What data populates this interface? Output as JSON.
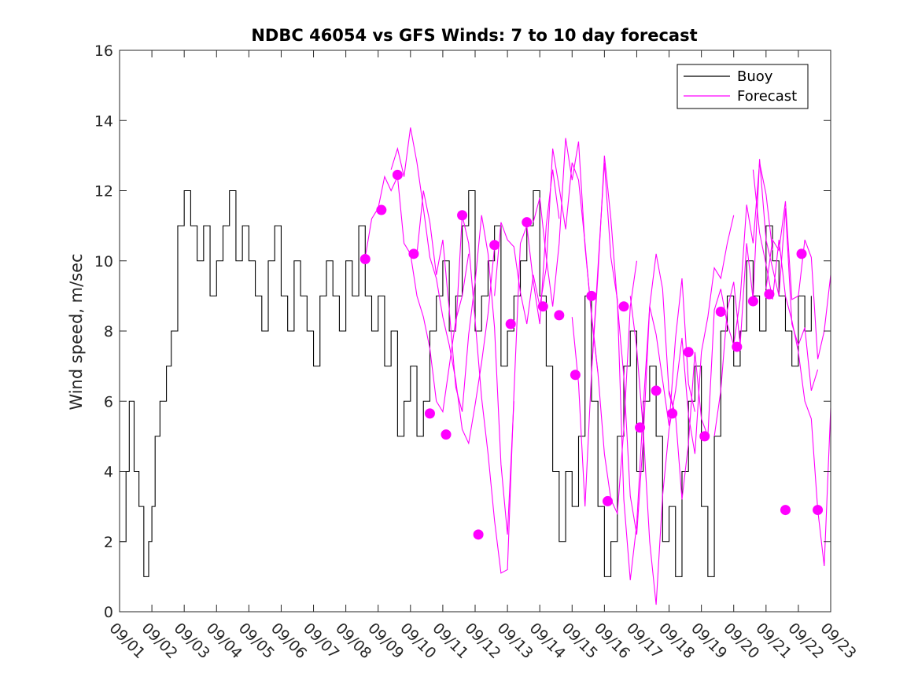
{
  "chart_data": {
    "type": "line",
    "title": "NDBC 46054 vs GFS Winds: 7 to 10 day forecast",
    "xlabel": "",
    "ylabel": "Wind speed, m/sec",
    "xlim": [
      0,
      22
    ],
    "ylim": [
      0,
      16
    ],
    "x_ticks": [
      {
        "x": 0,
        "label": "09/01"
      },
      {
        "x": 1,
        "label": "09/02"
      },
      {
        "x": 2,
        "label": "09/03"
      },
      {
        "x": 3,
        "label": "09/04"
      },
      {
        "x": 4,
        "label": "09/05"
      },
      {
        "x": 5,
        "label": "09/06"
      },
      {
        "x": 6,
        "label": "09/07"
      },
      {
        "x": 7,
        "label": "09/08"
      },
      {
        "x": 8,
        "label": "09/09"
      },
      {
        "x": 9,
        "label": "09/10"
      },
      {
        "x": 10,
        "label": "09/11"
      },
      {
        "x": 11,
        "label": "09/12"
      },
      {
        "x": 12,
        "label": "09/13"
      },
      {
        "x": 13,
        "label": "09/14"
      },
      {
        "x": 14,
        "label": "09/15"
      },
      {
        "x": 15,
        "label": "09/16"
      },
      {
        "x": 16,
        "label": "09/17"
      },
      {
        "x": 17,
        "label": "09/18"
      },
      {
        "x": 18,
        "label": "09/19"
      },
      {
        "x": 19,
        "label": "09/20"
      },
      {
        "x": 20,
        "label": "09/21"
      },
      {
        "x": 21,
        "label": "09/22"
      },
      {
        "x": 22,
        "label": "09/23"
      }
    ],
    "y_ticks": [
      0,
      2,
      4,
      6,
      8,
      10,
      12,
      14,
      16
    ],
    "legend": {
      "position": "top-right",
      "entries": [
        {
          "name": "Buoy",
          "color": "#000000"
        },
        {
          "name": "Forecast",
          "color": "#ff00ff"
        }
      ]
    },
    "series": [
      {
        "name": "Buoy",
        "color": "#000000",
        "x": [
          0,
          0.2,
          0.3,
          0.45,
          0.6,
          0.75,
          0.9,
          1.0,
          1.1,
          1.25,
          1.45,
          1.6,
          1.8,
          2.0,
          2.2,
          2.4,
          2.6,
          2.8,
          3.0,
          3.2,
          3.4,
          3.6,
          3.8,
          4.0,
          4.2,
          4.4,
          4.6,
          4.8,
          5.0,
          5.2,
          5.4,
          5.6,
          5.8,
          6.0,
          6.2,
          6.4,
          6.6,
          6.8,
          7.0,
          7.2,
          7.4,
          7.6,
          7.8,
          8.0,
          8.2,
          8.4,
          8.6,
          8.8,
          9.0,
          9.2,
          9.4,
          9.6,
          9.8,
          10.0,
          10.2,
          10.4,
          10.6,
          10.8,
          11.0,
          11.2,
          11.4,
          11.6,
          11.8,
          12.0,
          12.2,
          12.4,
          12.6,
          12.8,
          13.0,
          13.2,
          13.4,
          13.6,
          13.8,
          14.0,
          14.2,
          14.4,
          14.6,
          14.8,
          15.0,
          15.2,
          15.4,
          15.6,
          15.8,
          16.0,
          16.2,
          16.4,
          16.6,
          16.8,
          17.0,
          17.2,
          17.4,
          17.6,
          17.8,
          18.0,
          18.2,
          18.4,
          18.6,
          18.8,
          19.0,
          19.2,
          19.4,
          19.6,
          19.8,
          20.0,
          20.2,
          20.4,
          20.6,
          20.8,
          21.0,
          21.2,
          21.4
        ],
        "y": [
          2,
          4,
          6,
          4,
          3,
          1,
          2,
          3,
          5,
          6,
          7,
          8,
          11,
          12,
          11,
          10,
          11,
          9,
          10,
          11,
          12,
          10,
          11,
          10,
          9,
          8,
          10,
          11,
          9,
          8,
          10,
          9,
          8,
          7,
          9,
          10,
          9,
          8,
          10,
          9,
          11,
          9,
          8,
          9,
          7,
          8,
          5,
          6,
          7,
          5,
          6,
          8,
          9,
          10,
          8,
          9,
          11,
          12,
          8,
          9,
          10,
          11,
          7,
          8,
          9,
          10,
          11,
          12,
          9,
          7,
          4,
          2,
          4,
          3,
          5,
          9,
          6,
          3,
          1,
          2,
          5,
          7,
          8,
          4,
          6,
          7,
          5,
          2,
          3,
          1,
          4,
          6,
          7,
          3,
          1,
          5,
          8,
          9,
          7,
          8,
          10,
          9,
          8,
          11,
          10,
          9,
          8,
          7,
          9,
          8,
          9
        ]
      },
      {
        "name": "Forecast",
        "color": "#ff00ff",
        "x": [
          7.6,
          7.8,
          8.0,
          8.2,
          8.4,
          8.6,
          8.8,
          9.0,
          9.2,
          9.4,
          9.6,
          9.8,
          10.0,
          10.2,
          10.4,
          10.6,
          10.8
        ],
        "y": [
          10.1,
          11.2,
          11.5,
          12.4,
          12.0,
          12.4,
          10.5,
          10.2,
          9.0,
          8.4,
          7.5,
          6.0,
          5.7,
          7.0,
          8.3,
          9.0,
          10.2
        ]
      },
      {
        "name": "Forecast",
        "color": "#ff00ff",
        "x": [
          8.4,
          8.6,
          8.8,
          9.0,
          9.2,
          9.4,
          9.6,
          9.8,
          10.0,
          10.2,
          10.4,
          10.6,
          10.8,
          11.0,
          11.2,
          11.4,
          11.6
        ],
        "y": [
          12.6,
          13.2,
          12.4,
          13.8,
          12.8,
          11.5,
          10.1,
          9.5,
          8.4,
          7.6,
          6.6,
          5.2,
          4.8,
          5.9,
          7.1,
          8.5,
          10.4
        ]
      },
      {
        "name": "Forecast",
        "color": "#ff00ff",
        "x": [
          9.2,
          9.4,
          9.6,
          9.8,
          10.0,
          10.2,
          10.4,
          10.6,
          10.8,
          11.0,
          11.2,
          11.4,
          11.6,
          11.8,
          12.0,
          12.2
        ],
        "y": [
          10.2,
          12.0,
          11.1,
          9.6,
          10.6,
          8.6,
          6.4,
          5.7,
          7.9,
          9.4,
          11.3,
          10.2,
          8.1,
          4.2,
          2.2,
          6.0
        ]
      },
      {
        "name": "Forecast",
        "color": "#ff00ff",
        "x": [
          10.4,
          10.6,
          10.8,
          11.0,
          11.2,
          11.4,
          11.6,
          11.8,
          12.0,
          12.2,
          12.4,
          12.6,
          12.8,
          13.0,
          13.2,
          13.4,
          13.6
        ],
        "y": [
          8.0,
          11.3,
          10.5,
          8.3,
          6.1,
          4.5,
          2.6,
          1.1,
          1.2,
          6.2,
          10.5,
          11.0,
          9.4,
          8.2,
          11.0,
          12.6,
          11.2
        ]
      },
      {
        "name": "Forecast",
        "color": "#ff00ff",
        "x": [
          11.6,
          11.8,
          12.0,
          12.2,
          12.4,
          12.6,
          12.8,
          13.0,
          13.2,
          13.4,
          13.6,
          13.8,
          14.0,
          14.2,
          14.4,
          14.6,
          14.8
        ],
        "y": [
          9.0,
          11.1,
          10.6,
          10.4,
          9.1,
          8.2,
          9.6,
          8.7,
          9.8,
          13.2,
          12.1,
          10.9,
          12.8,
          12.3,
          10.5,
          8.4,
          6.8
        ]
      },
      {
        "name": "Forecast",
        "color": "#ff00ff",
        "x": [
          12.8,
          13.0,
          13.2,
          13.4,
          13.6,
          13.8,
          14.0,
          14.2,
          14.4,
          14.6,
          14.8,
          15.0,
          15.2,
          15.4,
          15.6,
          15.8,
          16.0
        ],
        "y": [
          11.1,
          11.8,
          10.1,
          8.7,
          10.5,
          13.5,
          12.3,
          13.4,
          10.4,
          8.5,
          6.8,
          4.5,
          3.2,
          2.8,
          5.2,
          8.7,
          10.0
        ]
      },
      {
        "name": "Forecast",
        "color": "#ff00ff",
        "x": [
          14.0,
          14.2,
          14.4,
          14.6,
          14.8,
          15.0,
          15.2,
          15.4,
          15.6,
          15.8,
          16.0,
          16.2,
          16.4,
          16.6,
          16.8,
          17.0,
          17.2
        ],
        "y": [
          8.4,
          6.5,
          3.0,
          6.8,
          9.6,
          13.0,
          11.2,
          8.8,
          6.7,
          3.3,
          2.2,
          4.9,
          8.7,
          10.2,
          9.2,
          6.2,
          5.6
        ]
      },
      {
        "name": "Forecast",
        "color": "#ff00ff",
        "x": [
          14.6,
          14.8,
          15.0,
          15.2,
          15.4,
          15.6,
          15.8,
          16.0,
          16.2,
          16.4,
          16.6,
          16.8,
          17.0,
          17.2,
          17.4,
          17.6,
          17.8
        ],
        "y": [
          6.8,
          9.8,
          12.8,
          10.1,
          8.9,
          3.2,
          0.9,
          2.5,
          5.8,
          8.7,
          7.9,
          6.6,
          5.3,
          7.8,
          9.5,
          6.5,
          5.7
        ]
      },
      {
        "name": "Forecast",
        "color": "#ff00ff",
        "x": [
          15.8,
          16.0,
          16.2,
          16.4,
          16.6,
          16.8,
          17.0,
          17.2,
          17.4,
          17.6,
          17.8,
          18.0,
          18.2,
          18.4,
          18.6,
          18.8,
          19.0
        ],
        "y": [
          9.0,
          7.5,
          5.2,
          2.0,
          0.2,
          3.3,
          5.2,
          6.3,
          7.8,
          5.6,
          4.5,
          7.4,
          8.4,
          9.8,
          9.5,
          10.5,
          11.3
        ]
      },
      {
        "name": "Forecast",
        "color": "#ff00ff",
        "x": [
          17.0,
          17.2,
          17.4,
          17.6,
          17.8,
          18.0,
          18.2,
          18.4,
          18.6,
          18.8,
          19.0,
          19.2,
          19.4,
          19.6,
          19.8,
          20.0,
          20.2
        ],
        "y": [
          6.3,
          5.6,
          3.2,
          4.8,
          7.4,
          5.5,
          5.0,
          8.6,
          9.2,
          8.2,
          7.6,
          8.9,
          11.6,
          10.5,
          12.8,
          11.9,
          10.3
        ]
      },
      {
        "name": "Forecast",
        "color": "#ff00ff",
        "x": [
          18.4,
          18.6,
          18.8,
          19.0,
          19.2,
          19.4,
          19.6,
          19.8,
          20.0,
          20.2,
          20.4,
          20.6,
          20.8,
          21.0,
          21.2,
          21.4,
          21.6
        ],
        "y": [
          5.0,
          6.3,
          8.6,
          9.4,
          7.6,
          10.5,
          8.9,
          12.9,
          10.6,
          9.8,
          9.0,
          11.5,
          8.2,
          7.6,
          8.1,
          6.3,
          6.9
        ]
      },
      {
        "name": "Forecast",
        "color": "#ff00ff",
        "x": [
          19.6,
          19.8,
          20.0,
          20.2,
          20.4,
          20.6,
          20.8,
          21.0,
          21.2,
          21.4,
          21.6,
          21.8,
          22.0
        ],
        "y": [
          12.6,
          10.8,
          9.9,
          8.9,
          10.6,
          9.0,
          8.3,
          7.4,
          6.0,
          5.5,
          2.9,
          1.3,
          5.8
        ]
      },
      {
        "name": "Forecast",
        "color": "#ff00ff",
        "x": [
          20.0,
          20.2,
          20.4,
          20.6,
          20.8,
          21.0,
          21.2,
          21.4,
          21.6,
          21.8,
          22.0
        ],
        "y": [
          9.2,
          10.6,
          10.3,
          11.7,
          8.9,
          9.0,
          10.6,
          10.1,
          7.2,
          8.0,
          9.6
        ]
      },
      {
        "name": "Forecast markers",
        "color": "#ff00ff",
        "x": [
          7.6,
          8.1,
          8.6,
          9.1,
          9.6,
          10.1,
          10.6,
          11.1,
          11.6,
          12.1,
          12.6,
          13.1,
          13.6,
          14.1,
          14.6,
          15.1,
          15.6,
          16.1,
          16.6,
          17.1,
          17.6,
          18.1,
          18.6,
          19.1,
          19.6,
          20.1,
          20.6,
          21.1,
          21.6
        ],
        "y": [
          10.05,
          11.45,
          12.45,
          10.2,
          5.65,
          5.05,
          11.3,
          2.2,
          10.45,
          8.2,
          11.1,
          8.7,
          8.45,
          6.75,
          9.0,
          3.15,
          8.7,
          5.25,
          6.3,
          5.65,
          7.4,
          5.0,
          8.55,
          7.55,
          8.85,
          9.05,
          2.9,
          10.2,
          2.9
        ]
      }
    ]
  }
}
